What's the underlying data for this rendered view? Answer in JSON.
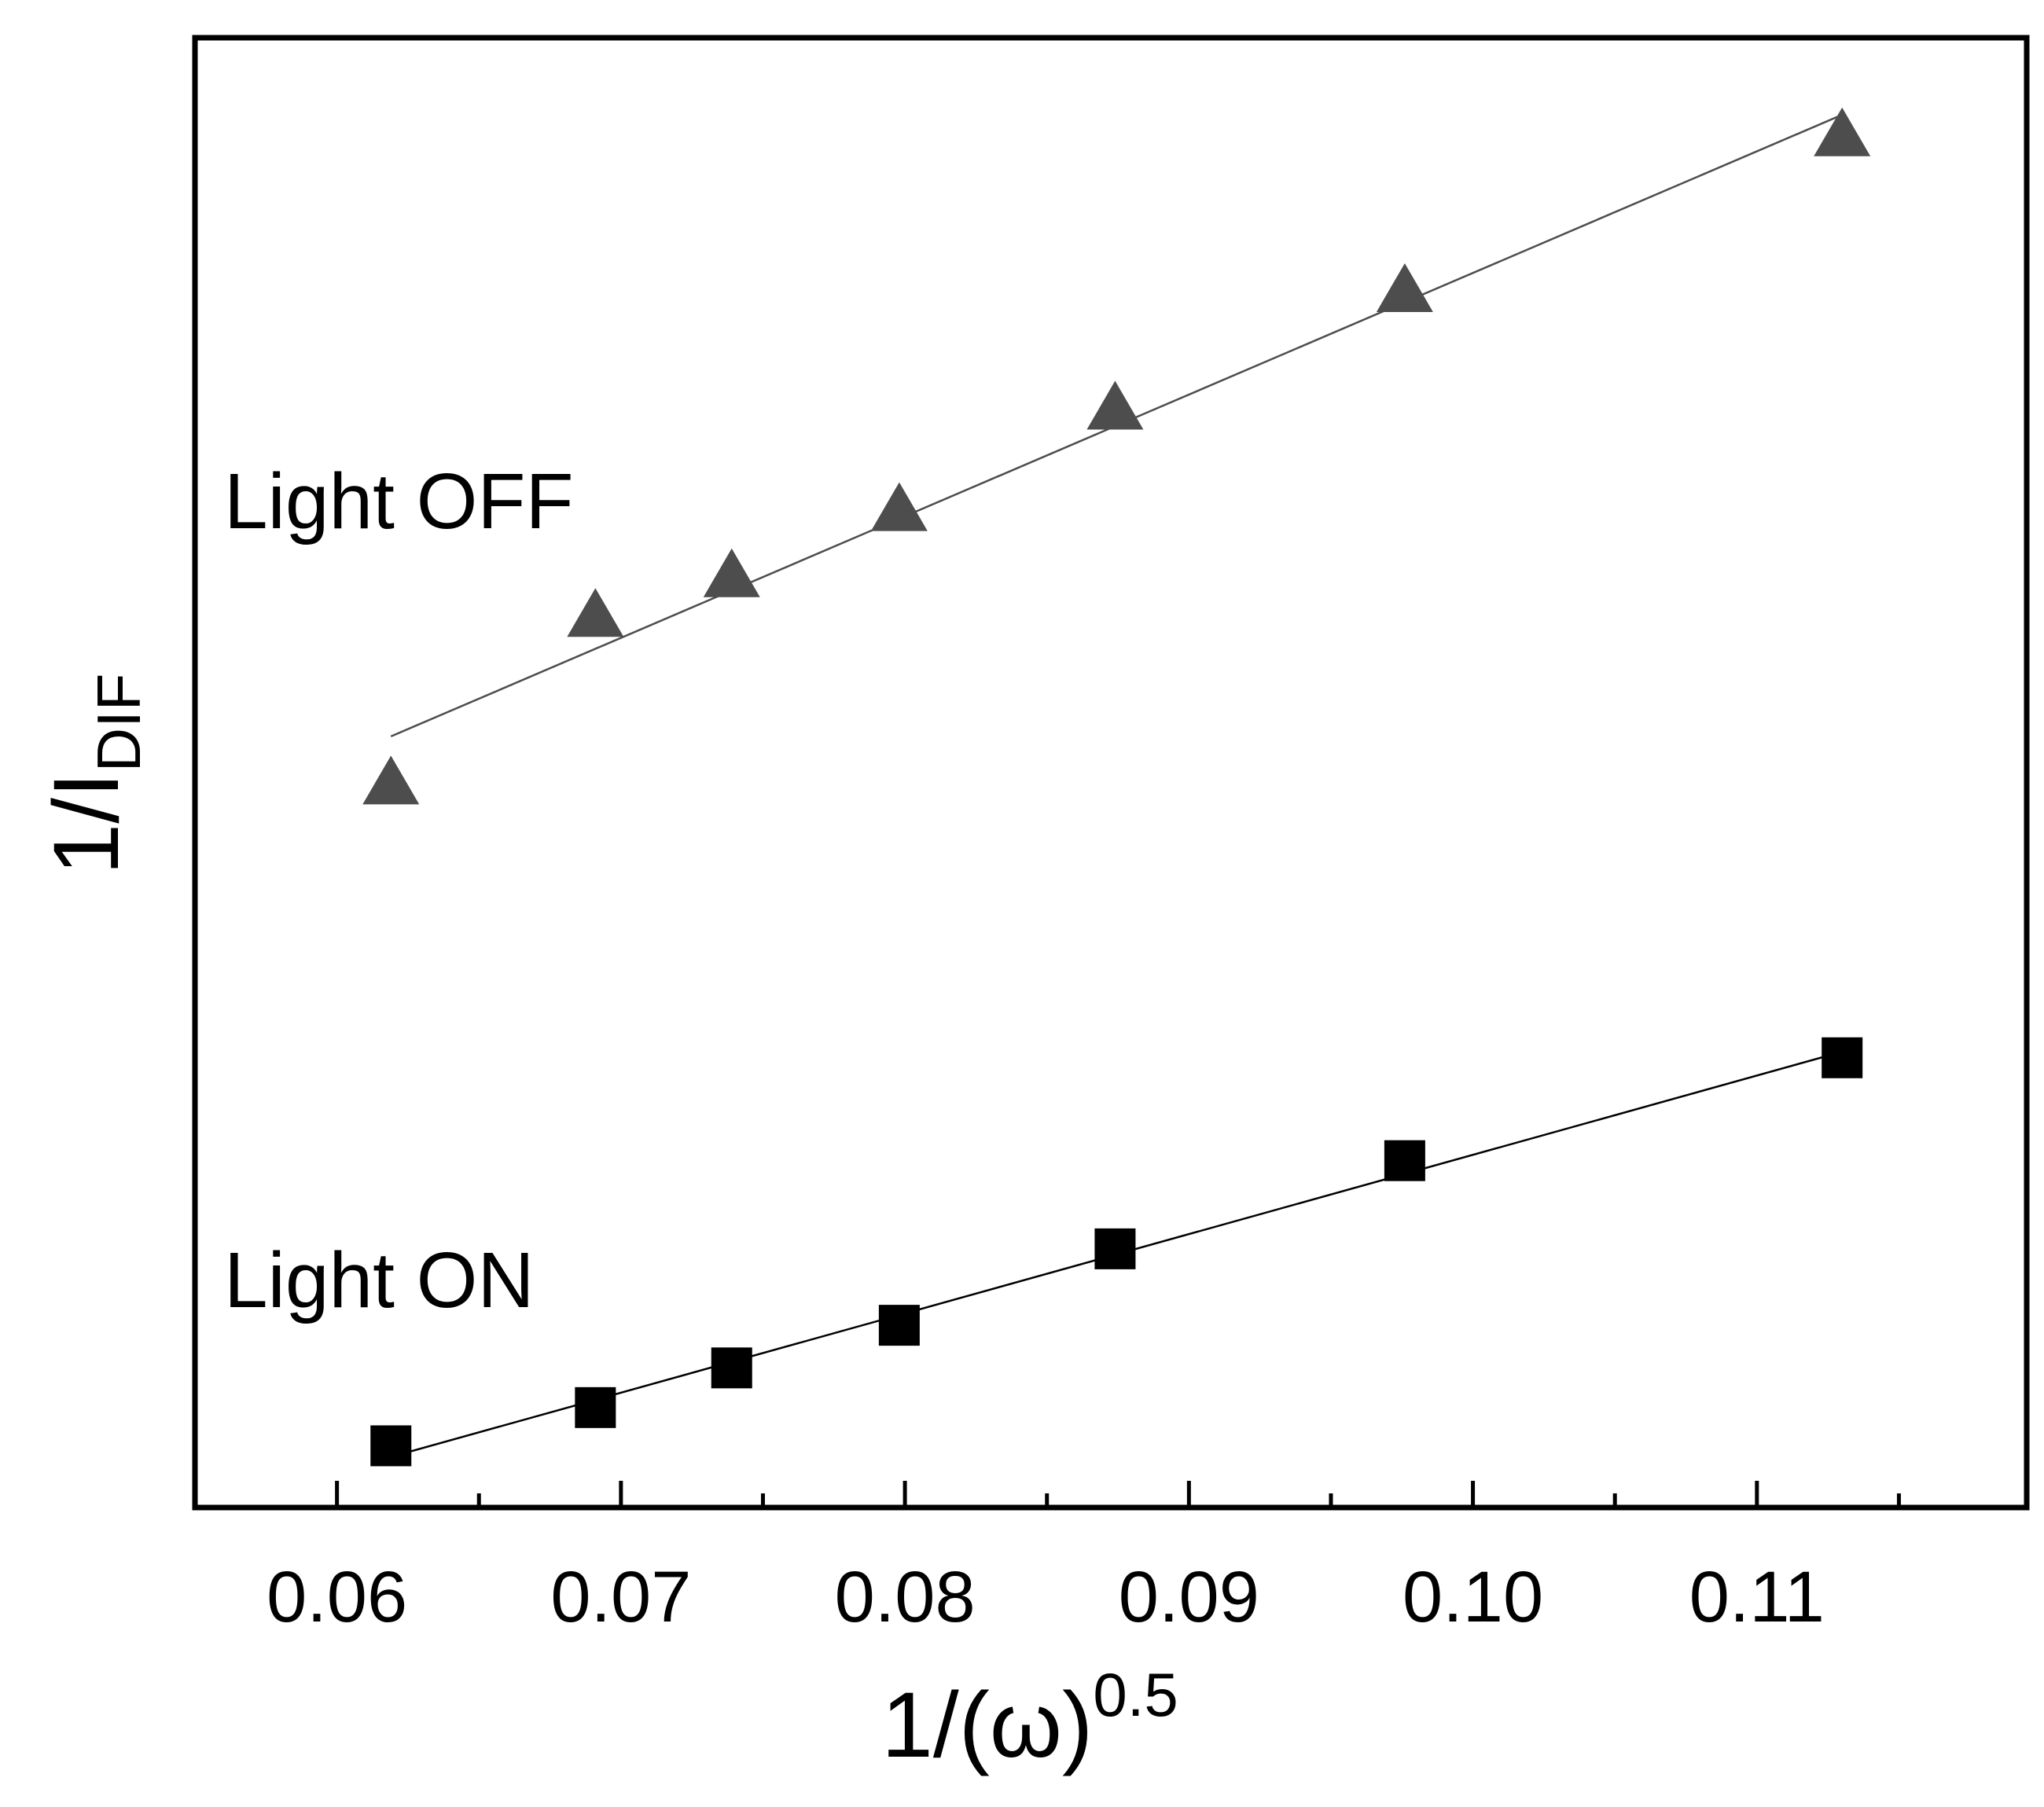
{
  "chart_data": {
    "type": "scatter",
    "title": "",
    "xlabel": "1/(ω)",
    "xlabel_superscript": "0.5",
    "ylabel": "1/I",
    "ylabel_subscript": "DIF",
    "xlim": [
      0.055,
      0.1195
    ],
    "ylim": [
      0,
      1
    ],
    "y_ticks_labeled": false,
    "x_major_ticks": [
      0.06,
      0.07,
      0.08,
      0.09,
      0.1,
      0.11
    ],
    "x_tick_labels": [
      "0.06",
      "0.07",
      "0.08",
      "0.09",
      "0.10",
      "0.11"
    ],
    "x_minor_ticks": [
      0.065,
      0.075,
      0.085,
      0.095,
      0.105,
      0.115
    ],
    "x": [
      0.0619,
      0.0691,
      0.0739,
      0.0798,
      0.0874,
      0.0976,
      0.113
    ],
    "series": [
      {
        "name": "Light OFF",
        "marker": "triangle",
        "color": "#4d4d4d",
        "fit_line": true,
        "values": [
          0.491,
          0.605,
          0.632,
          0.677,
          0.746,
          0.826,
          0.932
        ]
      },
      {
        "name": "Light ON",
        "marker": "square",
        "color": "#000000",
        "fit_line": true,
        "values": [
          0.042,
          0.068,
          0.095,
          0.124,
          0.176,
          0.236,
          0.306
        ]
      }
    ],
    "annotations": [
      "Light OFF",
      "Light ON"
    ]
  }
}
